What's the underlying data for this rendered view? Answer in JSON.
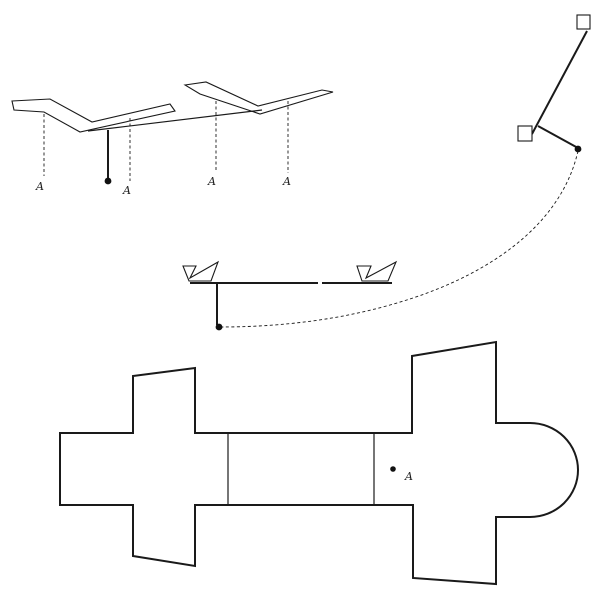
{
  "figure": {
    "labels": {
      "point_a": "A"
    },
    "colors": {
      "ink": "#1a1a1a",
      "background": "#ffffff"
    }
  }
}
